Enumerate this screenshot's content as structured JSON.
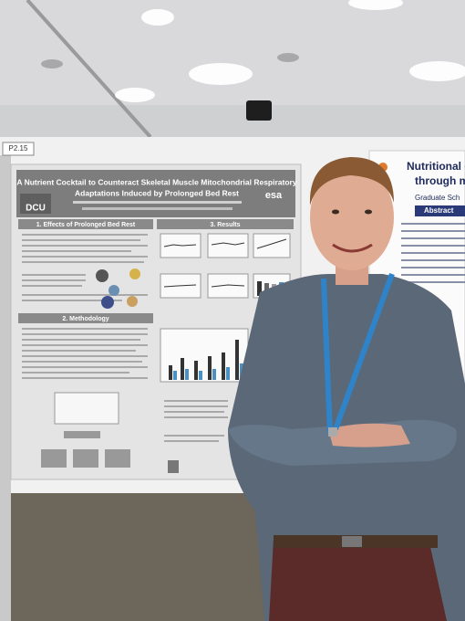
{
  "poster_board": {
    "tag": "P2.15"
  },
  "main_poster": {
    "title_lines": [
      "A Nutrient Cocktail to Counteract Skeletal Muscle Mitochondrial Respiratory",
      "Adaptations Induced by Prolonged Bed Rest"
    ],
    "logo_left": "DCU",
    "logo_right": "esa",
    "sections": [
      "1. Effects of Prolonged Bed Rest",
      "3. Results",
      "2. Methodology"
    ]
  },
  "right_poster": {
    "title_lines": [
      "Nutritional co",
      "through m"
    ],
    "affiliation": "Graduate Sch",
    "section": "Abstract"
  }
}
